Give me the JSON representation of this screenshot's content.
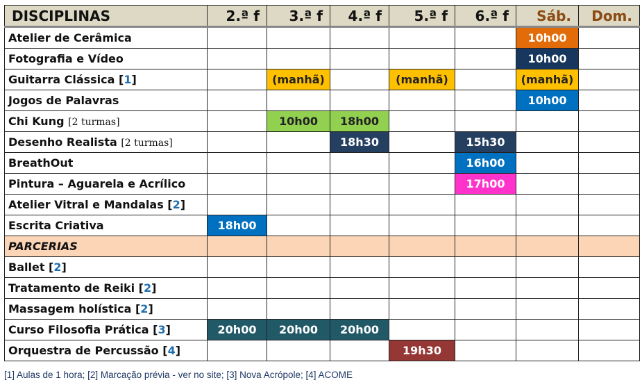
{
  "header": {
    "first": "DISCIPLINAS",
    "days": [
      "2.ª f",
      "3.ª f",
      "4.ª f",
      "5.ª f",
      "6.ª f",
      "Sáb.",
      "Dom."
    ]
  },
  "colors": {
    "orange": "#E36C0A",
    "navy": "#17375E",
    "amber": "#FFC000",
    "blue": "#0070C0",
    "green": "#92D050",
    "darknavy": "#243F60",
    "magenta": "#FF33CC",
    "teal": "#215967",
    "brown": "#953735",
    "section": "#FBD5B5",
    "header": "#DDD9C4"
  },
  "rows": [
    {
      "name": "Atelier de Cerâmica",
      "cells": [
        null,
        null,
        null,
        null,
        null,
        {
          "t": "10h00",
          "c": "orange"
        },
        null
      ]
    },
    {
      "name": "Fotografia e Vídeo",
      "cells": [
        null,
        null,
        null,
        null,
        null,
        {
          "t": "10h00",
          "c": "navy"
        },
        null
      ]
    },
    {
      "name": "Guitarra Clássica",
      "ref": "1",
      "cells": [
        null,
        {
          "t": "(manhã)",
          "c": "amber"
        },
        null,
        {
          "t": "(manhã)",
          "c": "amber"
        },
        null,
        {
          "t": "(manhã)",
          "c": "amber"
        },
        null
      ]
    },
    {
      "name": "Jogos de Palavras",
      "cells": [
        null,
        null,
        null,
        null,
        null,
        {
          "t": "10h00",
          "c": "blue"
        },
        null
      ]
    },
    {
      "name": "Chi Kung",
      "extra": "[2 turmas]",
      "cells": [
        null,
        {
          "t": "10h00",
          "c": "green"
        },
        {
          "t": "18h00",
          "c": "green"
        },
        null,
        null,
        null,
        null
      ]
    },
    {
      "name": "Desenho Realista",
      "extra": "[2 turmas]",
      "cells": [
        null,
        null,
        {
          "t": "18h30",
          "c": "darknavy"
        },
        null,
        {
          "t": "15h30",
          "c": "darknavy"
        },
        null,
        null
      ]
    },
    {
      "name": "BreathOut",
      "cells": [
        null,
        null,
        null,
        null,
        {
          "t": "16h00",
          "c": "blue"
        },
        null,
        null
      ]
    },
    {
      "name": "Pintura – Aguarela e Acrílico",
      "cells": [
        null,
        null,
        null,
        null,
        {
          "t": "17h00",
          "c": "magenta"
        },
        null,
        null
      ]
    },
    {
      "name": "Atelier Vitral e Mandalas",
      "ref": "2",
      "cells": [
        null,
        null,
        null,
        null,
        null,
        null,
        null
      ]
    },
    {
      "name": "Escrita Criativa",
      "cells": [
        {
          "t": "18h00",
          "c": "blue"
        },
        null,
        null,
        null,
        null,
        null,
        null
      ]
    },
    {
      "name": "PARCERIAS",
      "section": true
    },
    {
      "name": "Ballet",
      "ref": "2",
      "cells": [
        null,
        null,
        null,
        null,
        null,
        null,
        null
      ]
    },
    {
      "name": "Tratamento de Reiki",
      "ref": "2",
      "cells": [
        null,
        null,
        null,
        null,
        null,
        null,
        null
      ]
    },
    {
      "name": "Massagem holística",
      "ref": "2",
      "cells": [
        null,
        null,
        null,
        null,
        null,
        null,
        null
      ]
    },
    {
      "name": "Curso Filosofia Prática",
      "ref": "3",
      "cells": [
        {
          "t": "20h00",
          "c": "teal"
        },
        {
          "t": "20h00",
          "c": "teal"
        },
        {
          "t": "20h00",
          "c": "teal"
        },
        null,
        null,
        null,
        null
      ]
    },
    {
      "name": "Orquestra de Percussão",
      "ref": "4",
      "cells": [
        null,
        null,
        null,
        {
          "t": "19h30",
          "c": "brown"
        },
        null,
        null,
        null
      ]
    }
  ],
  "footnote": "[1] Aulas de 1 hora; [2] Marcação prévia - ver no site; [3] Nova Acrópole; [4] ACOME"
}
